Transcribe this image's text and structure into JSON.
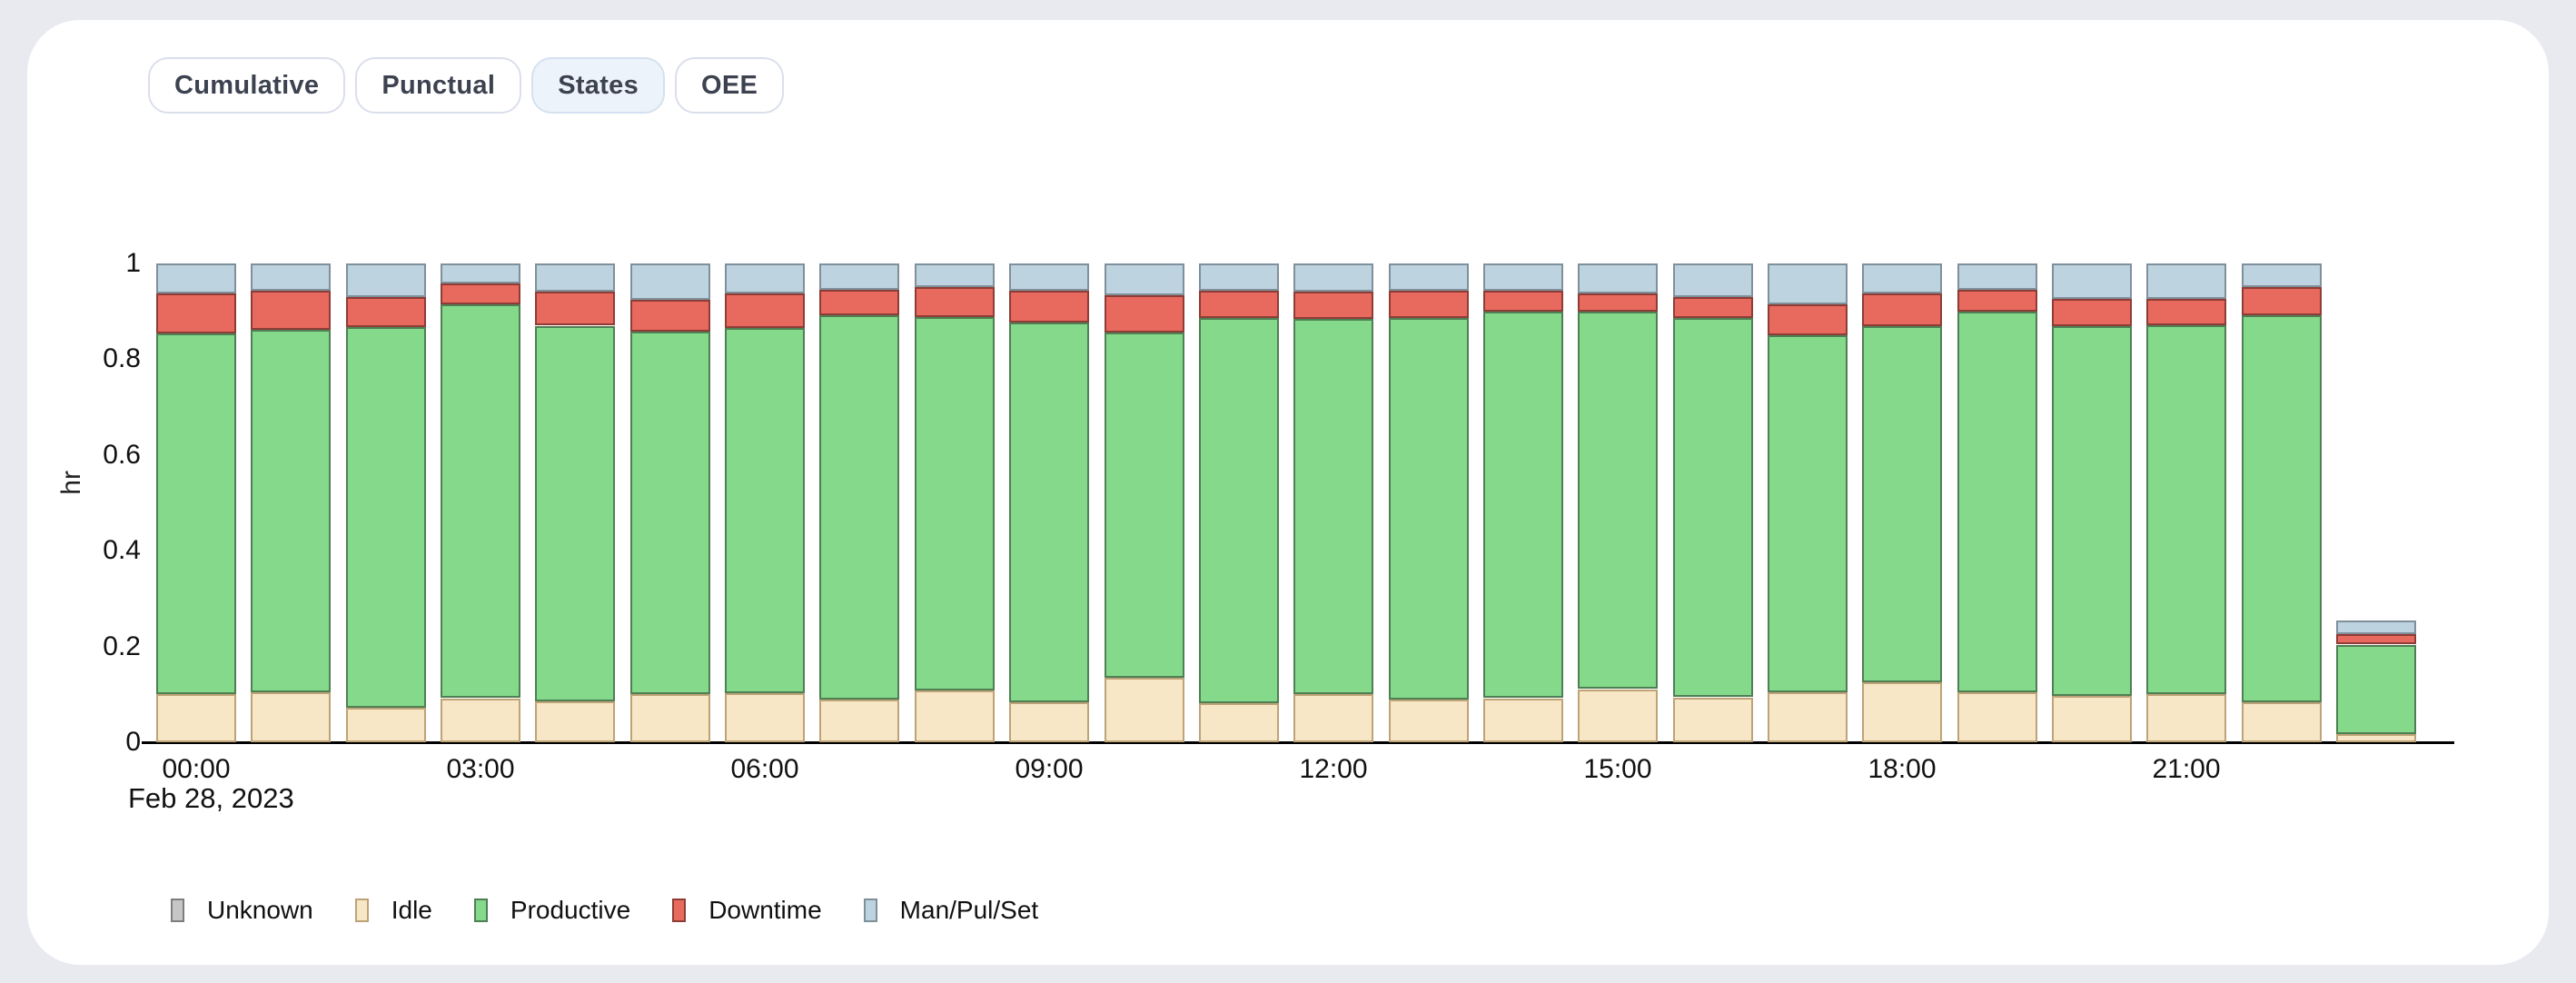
{
  "tabs": [
    {
      "label": "Cumulative",
      "selected": false
    },
    {
      "label": "Punctual",
      "selected": false
    },
    {
      "label": "States",
      "selected": true
    },
    {
      "label": "OEE",
      "selected": false
    }
  ],
  "colors": {
    "page_bg": "#e9e9f0",
    "card_bg": "#ffffff",
    "selected_tab_bg": "#edf3fa",
    "axis_text": "#111111"
  },
  "chart_data": {
    "type": "bar",
    "stacked": true,
    "ylabel": "hr",
    "x_date_label": "Feb 28, 2023",
    "ylim": [
      0,
      1
    ],
    "y_ticks": [
      "0",
      "0.2",
      "0.4",
      "0.6",
      "0.8",
      "1"
    ],
    "y_tick_values": [
      0,
      0.2,
      0.4,
      0.6,
      0.8,
      1
    ],
    "x_ticks": [
      {
        "hour": 0,
        "label": "00:00"
      },
      {
        "hour": 3,
        "label": "03:00"
      },
      {
        "hour": 6,
        "label": "06:00"
      },
      {
        "hour": 9,
        "label": "09:00"
      },
      {
        "hour": 12,
        "label": "12:00"
      },
      {
        "hour": 15,
        "label": "15:00"
      },
      {
        "hour": 18,
        "label": "18:00"
      },
      {
        "hour": 21,
        "label": "21:00"
      }
    ],
    "categories": [
      "00:00",
      "01:00",
      "02:00",
      "03:00",
      "04:00",
      "05:00",
      "06:00",
      "07:00",
      "08:00",
      "09:00",
      "10:00",
      "11:00",
      "12:00",
      "13:00",
      "14:00",
      "15:00",
      "16:00",
      "17:00",
      "18:00",
      "19:00",
      "20:00",
      "21:00",
      "22:00",
      "23:00"
    ],
    "series": [
      {
        "name": "Idle",
        "color": "#f8e7c6",
        "border": "#bda377",
        "values": [
          0.1,
          0.104,
          0.072,
          0.092,
          0.086,
          0.1,
          0.102,
          0.09,
          0.108,
          0.084,
          0.135,
          0.081,
          0.1,
          0.089,
          0.092,
          0.111,
          0.094,
          0.105,
          0.126,
          0.104,
          0.097,
          0.1,
          0.084,
          0.018
        ]
      },
      {
        "name": "Productive",
        "color": "#84d98a",
        "border": "#4f7f54",
        "values": [
          0.754,
          0.758,
          0.796,
          0.822,
          0.784,
          0.758,
          0.764,
          0.802,
          0.78,
          0.793,
          0.721,
          0.805,
          0.784,
          0.797,
          0.807,
          0.789,
          0.792,
          0.745,
          0.743,
          0.795,
          0.773,
          0.772,
          0.807,
          0.186
        ]
      },
      {
        "name": "Downtime",
        "color": "#e8695e",
        "border": "#8e3d36",
        "values": [
          0.084,
          0.082,
          0.062,
          0.045,
          0.072,
          0.066,
          0.071,
          0.053,
          0.063,
          0.066,
          0.078,
          0.058,
          0.058,
          0.058,
          0.044,
          0.037,
          0.043,
          0.065,
          0.068,
          0.047,
          0.057,
          0.055,
          0.059,
          0.022
        ]
      },
      {
        "name": "Man/Pul/Set",
        "color": "#bed3e0",
        "border": "#7f909b",
        "values": [
          0.062,
          0.056,
          0.07,
          0.041,
          0.058,
          0.076,
          0.063,
          0.055,
          0.049,
          0.057,
          0.066,
          0.056,
          0.058,
          0.056,
          0.057,
          0.063,
          0.071,
          0.085,
          0.063,
          0.054,
          0.073,
          0.073,
          0.05,
          0.028
        ]
      }
    ],
    "legend": [
      {
        "label": "Unknown",
        "color": "#c6c6c6",
        "border": "#7e7e7e"
      },
      {
        "label": "Idle",
        "color": "#f8e7c6",
        "border": "#bda377"
      },
      {
        "label": "Productive",
        "color": "#84d98a",
        "border": "#4f7f54"
      },
      {
        "label": "Downtime",
        "color": "#e8695e",
        "border": "#8e3d36"
      },
      {
        "label": "Man/Pul/Set",
        "color": "#bed3e0",
        "border": "#7f909b"
      }
    ],
    "legend_position": "bottom"
  }
}
